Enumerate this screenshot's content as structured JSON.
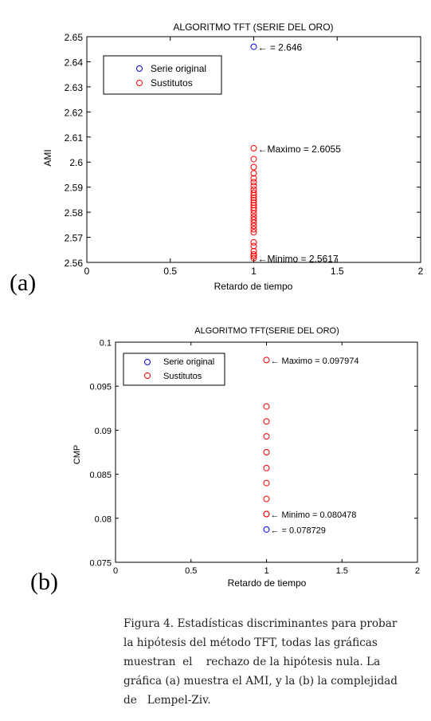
{
  "chart_data": [
    {
      "type": "scatter",
      "title": "ALGORITMO TFT (SERIE DEL ORO)",
      "xlabel": "Retardo de tiempo",
      "ylabel": "AMI",
      "xlim": [
        0,
        2
      ],
      "ylim": [
        2.56,
        2.65
      ],
      "xticks": [
        "0",
        "0.5",
        "1",
        "1.5",
        "2"
      ],
      "yticks": [
        "2.56",
        "2.57",
        "2.58",
        "2.59",
        "2.6",
        "2.61",
        "2.62",
        "2.63",
        "2.64",
        "2.65"
      ],
      "legend_position": "top-left",
      "series": [
        {
          "name": "Serie original",
          "color": "#0000ff",
          "x": [
            1
          ],
          "y": [
            2.646
          ]
        },
        {
          "name": "Sustitutos",
          "color": "#ff0000",
          "x": [
            1,
            1,
            1,
            1,
            1,
            1,
            1,
            1,
            1,
            1,
            1,
            1,
            1,
            1,
            1,
            1,
            1,
            1,
            1,
            1,
            1,
            1,
            1,
            1,
            1,
            1,
            1,
            1,
            1
          ],
          "y": [
            2.6055,
            2.6012,
            2.598,
            2.5955,
            2.5935,
            2.592,
            2.5905,
            2.589,
            2.5878,
            2.5868,
            2.5858,
            2.5848,
            2.5838,
            2.5828,
            2.5818,
            2.5808,
            2.5795,
            2.5782,
            2.577,
            2.5758,
            2.5745,
            2.5732,
            2.572,
            2.568,
            2.5665,
            2.5645,
            2.5632,
            2.5625,
            2.5617
          ]
        }
      ],
      "annotations": [
        {
          "text": "← = 2.646",
          "x": 1,
          "y": 2.646
        },
        {
          "text": "←Maximo = 2.6055",
          "x": 1,
          "y": 2.6055
        },
        {
          "text": "←Minimo = 2.5617",
          "x": 1,
          "y": 2.5617
        }
      ]
    },
    {
      "type": "scatter",
      "title": "ALGORITMO TFT(SERIE DEL ORO)",
      "xlabel": "Retardo de tiempo",
      "ylabel": "CMP",
      "xlim": [
        0,
        2
      ],
      "ylim": [
        0.075,
        0.1
      ],
      "xticks": [
        "0",
        "0.5",
        "1",
        "1.5",
        "2"
      ],
      "yticks": [
        "0.075",
        "0.08",
        "0.085",
        "0.09",
        "0.095",
        "0.1"
      ],
      "legend_position": "top-left",
      "series": [
        {
          "name": "Serie original",
          "color": "#0000ff",
          "x": [
            1
          ],
          "y": [
            0.078729
          ]
        },
        {
          "name": "Sustitutos",
          "color": "#ff0000",
          "x": [
            1,
            1,
            1,
            1,
            1,
            1,
            1,
            1,
            1,
            1
          ],
          "y": [
            0.097974,
            0.0927,
            0.091,
            0.0893,
            0.0875,
            0.0857,
            0.084,
            0.0822,
            0.080478,
            0.080478
          ]
        }
      ],
      "annotations": [
        {
          "text": "← Maximo = 0.097974",
          "x": 1,
          "y": 0.097974
        },
        {
          "text": "← Minimo = 0.080478",
          "x": 1,
          "y": 0.080478
        },
        {
          "text": "← = 0.078729",
          "x": 1,
          "y": 0.078729
        }
      ]
    }
  ],
  "panels": [
    "(a)",
    "(b)"
  ],
  "caption": {
    "line1": "Figura 4. Estadísticas discriminantes para probar",
    "line2": "la hipótesis del método TFT, todas las gráficas",
    "line3": "muestran  el    rechazo de la hipótesis nula. La",
    "line4": "gráfica (a) muestra el AMI, y la (b) la complejidad",
    "line5": "de   Lempel-Ziv."
  }
}
